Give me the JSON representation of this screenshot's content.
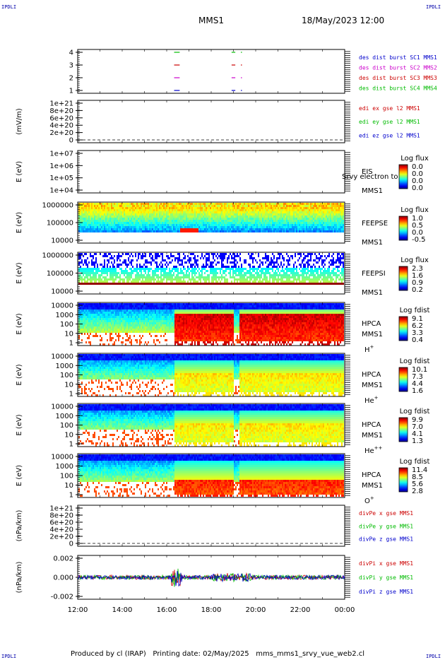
{
  "header": {
    "corner_label": "IPDLI",
    "mission": "MMS1",
    "datetime": "18/May/2023 12:00"
  },
  "footer": {
    "produced": "Produced by cl (IRAP)",
    "printed": "Printing date: 02/May/2025",
    "program": "mms_mms1_srvy_vue_web2.cl"
  },
  "chart_data": {
    "type": "multi-panel time series and spectrograms",
    "x_axis": {
      "range": [
        "12:00",
        "00:00"
      ],
      "tick_labels": [
        "12:00",
        "14:00",
        "16:00",
        "18:00",
        "20:00",
        "22:00",
        "00:00"
      ]
    },
    "panels": [
      {
        "id": "burst",
        "ylabel": "",
        "y_ticks": [
          "4",
          "3",
          "2",
          "1"
        ],
        "legend": [
          {
            "text": "des dist burst SC1 MMS1",
            "color": "#0000cc"
          },
          {
            "text": "des dist burst SC2 MMS2",
            "color": "#cc00cc"
          },
          {
            "text": "des dist burst SC3 MMS3",
            "color": "#cc0000"
          },
          {
            "text": "des dist burst SC4 MMS4",
            "color": "#00bb00"
          }
        ],
        "burst_intervals": [
          {
            "sc": 4,
            "segments": [
              [
                "16:20",
                "16:35"
              ],
              [
                "18:55",
                "19:05"
              ],
              [
                "19:20",
                "19:23"
              ]
            ],
            "color": "#00bb00"
          },
          {
            "sc": 3,
            "segments": [
              [
                "16:20",
                "16:35"
              ],
              [
                "18:55",
                "19:05"
              ],
              [
                "19:20",
                "19:23"
              ]
            ],
            "color": "#cc0000"
          },
          {
            "sc": 2,
            "segments": [
              [
                "16:20",
                "16:35"
              ],
              [
                "18:55",
                "19:05"
              ],
              [
                "19:20",
                "19:23"
              ]
            ],
            "color": "#cc00cc"
          },
          {
            "sc": 1,
            "segments": [
              [
                "16:20",
                "16:35"
              ],
              [
                "18:55",
                "19:05"
              ],
              [
                "19:20",
                "19:23"
              ]
            ],
            "color": "#0000cc"
          }
        ]
      },
      {
        "id": "edi",
        "ylabel": "(mV/m)",
        "y_ticks": [
          "1e+21",
          "8e+20",
          "6e+20",
          "4e+20",
          "2e+20",
          "0"
        ],
        "legend": [
          {
            "text": "edi ex gse l2 MMS1",
            "color": "#cc0000"
          },
          {
            "text": "edi ey gse l2 MMS1",
            "color": "#00bb00"
          },
          {
            "text": "edi ez gse l2 MMS1",
            "color": "#0000cc"
          }
        ]
      },
      {
        "id": "eis",
        "ylabel": "E (eV)",
        "y_ticks": [
          "1e+07",
          "1e+06",
          "1e+05",
          "1e+04"
        ],
        "instrument": "EIS",
        "overlay_text": "Srvy electron to",
        "spacecraft": "MMS1",
        "colorbar": {
          "title": "Log flux",
          "ticks": [
            "0.0",
            "0.0",
            "0.0",
            "0.0"
          ]
        }
      },
      {
        "id": "feepse",
        "ylabel": "E (eV)",
        "y_ticks": [
          "1000000",
          "100000",
          "10000"
        ],
        "instrument": "FEEPSE",
        "spacecraft": "MMS1",
        "colorbar": {
          "title": "Log flux",
          "ticks": [
            "1.0",
            "0.5",
            "0.0",
            "-0.5"
          ]
        }
      },
      {
        "id": "feepsi",
        "ylabel": "E (eV)",
        "y_ticks": [
          "1000000",
          "100000",
          "10000"
        ],
        "instrument": "FEEPSI",
        "spacecraft": "MMS1",
        "colorbar": {
          "title": "Log flux",
          "ticks": [
            "2.3",
            "1.6",
            "0.9",
            "0.2"
          ]
        }
      },
      {
        "id": "hpca_h",
        "ylabel": "E (eV)",
        "y_ticks": [
          "10000",
          "1000",
          "100",
          "10",
          "1"
        ],
        "instrument": "HPCA",
        "spacecraft": "MMS1",
        "species": "H",
        "species_sup": "+",
        "colorbar": {
          "title": "Log fdist",
          "ticks": [
            "9.1",
            "6.2",
            "3.3",
            "0.4"
          ]
        }
      },
      {
        "id": "hpca_he",
        "ylabel": "E (eV)",
        "y_ticks": [
          "10000",
          "1000",
          "100",
          "10",
          "1"
        ],
        "instrument": "HPCA",
        "spacecraft": "MMS1",
        "species": "He",
        "species_sup": "+",
        "colorbar": {
          "title": "Log fdist",
          "ticks": [
            "10.1",
            "7.3",
            "4.4",
            "1.6"
          ]
        }
      },
      {
        "id": "hpca_hepp",
        "ylabel": "E (eV)",
        "y_ticks": [
          "10000",
          "1000",
          "100",
          "10",
          "1"
        ],
        "instrument": "HPCA",
        "spacecraft": "MMS1",
        "species": "He",
        "species_sup": "++",
        "colorbar": {
          "title": "Log fdist",
          "ticks": [
            "9.9",
            "7.0",
            "4.1",
            "1.3"
          ]
        }
      },
      {
        "id": "hpca_o",
        "ylabel": "E (eV)",
        "y_ticks": [
          "10000",
          "1000",
          "100",
          "10",
          "1"
        ],
        "instrument": "HPCA",
        "spacecraft": "MMS1",
        "species": "O",
        "species_sup": "+",
        "colorbar": {
          "title": "Log fdist",
          "ticks": [
            "11.4",
            "8.5",
            "5.6",
            "2.8"
          ]
        }
      },
      {
        "id": "divpe",
        "ylabel": "(nPa/km)",
        "y_ticks": [
          "1e+21",
          "8e+20",
          "6e+20",
          "4e+20",
          "2e+20",
          "0"
        ],
        "legend": [
          {
            "text": "divPe x gse MMS1",
            "color": "#cc0000"
          },
          {
            "text": "divPe y gse MMS1",
            "color": "#00bb00"
          },
          {
            "text": "divPe z gse MMS1",
            "color": "#0000cc"
          }
        ]
      },
      {
        "id": "divpi",
        "ylabel": "(nPa/km)",
        "y_ticks": [
          "0.002",
          "0.000",
          "-0.002"
        ],
        "ylim": [
          -0.003,
          0.003
        ],
        "legend": [
          {
            "text": "divPi x gse MMS1",
            "color": "#cc0000"
          },
          {
            "text": "divPi y gse MMS1",
            "color": "#00bb00"
          },
          {
            "text": "divPi z gse MMS1",
            "color": "#0000cc"
          }
        ]
      }
    ]
  }
}
